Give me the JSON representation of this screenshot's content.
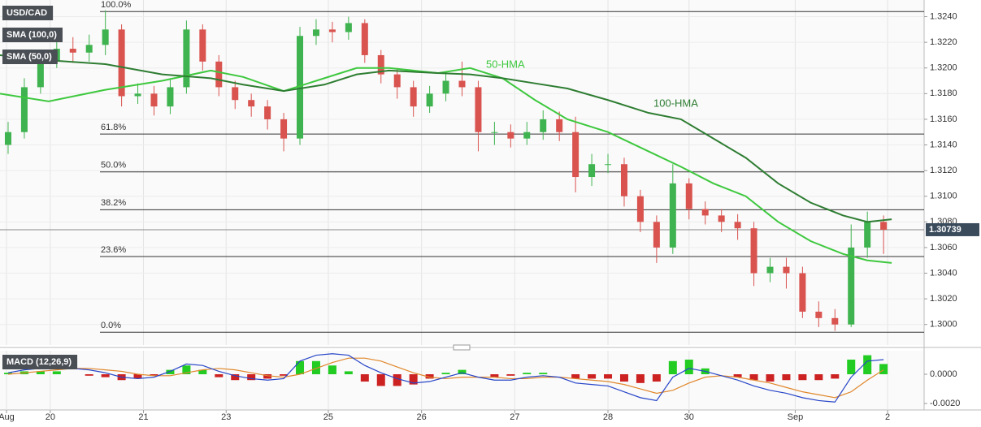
{
  "chart_data": [
    {
      "type": "candlestick",
      "legend": [
        "USD/CAD",
        "SMA (100,0)",
        "SMA (50,0)"
      ],
      "x": [
        1,
        3,
        5,
        7,
        9,
        11,
        13,
        15,
        17,
        19,
        21,
        23,
        25,
        27,
        29,
        31,
        33,
        35,
        37,
        39,
        41,
        43,
        45,
        47,
        49,
        51,
        53,
        55,
        57,
        59,
        61,
        63,
        65,
        67,
        69,
        71,
        73,
        75,
        77,
        79,
        81,
        83,
        85,
        87,
        89,
        91,
        93,
        95,
        97,
        99,
        101,
        103,
        105,
        107,
        109
      ],
      "open": [
        1.314,
        1.315,
        1.3185,
        1.3205,
        1.3215,
        1.3212,
        1.3218,
        1.323,
        1.3178,
        1.318,
        1.317,
        1.3185,
        1.323,
        1.3205,
        1.3185,
        1.3175,
        1.317,
        1.316,
        1.3145,
        1.3225,
        1.323,
        1.3228,
        1.3235,
        1.321,
        1.3195,
        1.3185,
        1.317,
        1.318,
        1.319,
        1.3185,
        1.315,
        1.315,
        1.3145,
        1.315,
        1.316,
        1.315,
        1.3115,
        1.3125,
        1.3125,
        1.31,
        1.308,
        1.306,
        1.311,
        1.309,
        1.3085,
        1.308,
        1.3075,
        1.304,
        1.3045,
        1.304,
        1.301,
        1.3005,
        1.3,
        1.306,
        1.308
      ],
      "high": [
        1.3158,
        1.3192,
        1.3212,
        1.3222,
        1.3224,
        1.3226,
        1.3245,
        1.3234,
        1.3188,
        1.3186,
        1.3192,
        1.3237,
        1.3234,
        1.321,
        1.319,
        1.318,
        1.3175,
        1.3165,
        1.3232,
        1.3238,
        1.3236,
        1.324,
        1.3238,
        1.3214,
        1.32,
        1.319,
        1.3186,
        1.3196,
        1.3205,
        1.319,
        1.3158,
        1.3156,
        1.3158,
        1.3167,
        1.3166,
        1.3162,
        1.3133,
        1.3133,
        1.313,
        1.3105,
        1.3085,
        1.3125,
        1.3114,
        1.3096,
        1.309,
        1.3086,
        1.308,
        1.3052,
        1.3052,
        1.3045,
        1.3018,
        1.3012,
        1.3078,
        1.3088,
        1.3085
      ],
      "low": [
        1.3133,
        1.3145,
        1.318,
        1.32,
        1.3204,
        1.3205,
        1.321,
        1.317,
        1.3172,
        1.3163,
        1.3164,
        1.318,
        1.3198,
        1.3178,
        1.3168,
        1.3162,
        1.3152,
        1.3135,
        1.314,
        1.3218,
        1.322,
        1.3222,
        1.3204,
        1.3188,
        1.3176,
        1.3162,
        1.3165,
        1.3174,
        1.3178,
        1.3135,
        1.314,
        1.3138,
        1.314,
        1.3144,
        1.3143,
        1.3103,
        1.3108,
        1.3118,
        1.3092,
        1.3072,
        1.3048,
        1.3055,
        1.3082,
        1.3078,
        1.3072,
        1.3066,
        1.303,
        1.3033,
        1.3028,
        1.3005,
        1.2998,
        1.2995,
        1.2998,
        1.3052,
        1.3055
      ],
      "close": [
        1.315,
        1.3185,
        1.3205,
        1.3215,
        1.3212,
        1.3218,
        1.323,
        1.3178,
        1.318,
        1.317,
        1.3185,
        1.323,
        1.3205,
        1.3185,
        1.3175,
        1.317,
        1.316,
        1.3145,
        1.3225,
        1.323,
        1.3228,
        1.3235,
        1.321,
        1.3195,
        1.3185,
        1.317,
        1.318,
        1.319,
        1.3185,
        1.315,
        1.315,
        1.3145,
        1.315,
        1.316,
        1.315,
        1.3115,
        1.3125,
        1.3125,
        1.31,
        1.308,
        1.306,
        1.311,
        1.309,
        1.3085,
        1.308,
        1.3075,
        1.304,
        1.3045,
        1.304,
        1.301,
        1.3005,
        1.3,
        1.306,
        1.308,
        1.30739
      ],
      "up_color": "#3fb34f",
      "down_color": "#d9534f",
      "lines": [
        {
          "name": "50-HMA",
          "color": "#3ec83e",
          "x": [
            0,
            6,
            13,
            20,
            26,
            30,
            35,
            40,
            44,
            48,
            54,
            58,
            62,
            66,
            70,
            75,
            80,
            84,
            88,
            92,
            96,
            100,
            104,
            107,
            110
          ],
          "values": [
            1.318,
            1.3174,
            1.3183,
            1.319,
            1.3198,
            1.3193,
            1.3182,
            1.3192,
            1.32,
            1.32,
            1.3196,
            1.32,
            1.3192,
            1.3175,
            1.316,
            1.315,
            1.3135,
            1.3123,
            1.311,
            1.31,
            1.308,
            1.3065,
            1.3055,
            1.305,
            1.3048
          ]
        },
        {
          "name": "100-HMA",
          "color": "#2e7d32",
          "x": [
            0,
            6,
            13,
            20,
            26,
            30,
            35,
            40,
            44,
            48,
            54,
            58,
            62,
            66,
            70,
            75,
            80,
            84,
            88,
            92,
            96,
            100,
            104,
            107,
            110
          ],
          "values": [
            1.321,
            1.3206,
            1.3203,
            1.3195,
            1.3192,
            1.3187,
            1.3182,
            1.3187,
            1.3195,
            1.3198,
            1.3196,
            1.3195,
            1.3192,
            1.3188,
            1.3184,
            1.3175,
            1.3165,
            1.316,
            1.3145,
            1.313,
            1.311,
            1.3095,
            1.3085,
            1.308,
            1.3082
          ]
        }
      ],
      "levels": [
        {
          "label": "100.0%",
          "value": 1.3244
        },
        {
          "label": "61.8%",
          "value": 1.31485
        },
        {
          "label": "50.0%",
          "value": 1.3119
        },
        {
          "label": "38.2%",
          "value": 1.30895
        },
        {
          "label": "23.6%",
          "value": 1.3053
        },
        {
          "label": "0.0%",
          "value": 1.2994
        }
      ],
      "last_price": 1.30739,
      "xlim": [
        0,
        114
      ],
      "ylim": [
        1.2984,
        1.3253
      ],
      "yticks": [
        {
          "value": 1.3,
          "label": "1.3000"
        },
        {
          "value": 1.302,
          "label": "1.3020"
        },
        {
          "value": 1.304,
          "label": "1.3040"
        },
        {
          "value": 1.306,
          "label": "1.3060"
        },
        {
          "value": 1.308,
          "label": "1.3080"
        },
        {
          "value": 1.31,
          "label": "1.3100"
        },
        {
          "value": 1.312,
          "label": "1.3120"
        },
        {
          "value": 1.314,
          "label": "1.3140"
        },
        {
          "value": 1.316,
          "label": "1.3160"
        },
        {
          "value": 1.318,
          "label": "1.3180"
        },
        {
          "value": 1.32,
          "label": "1.3200"
        },
        {
          "value": 1.322,
          "label": "1.3220"
        },
        {
          "value": 1.324,
          "label": "1.3240"
        }
      ],
      "grid": true
    },
    {
      "type": "macd",
      "label": "MACD (12,26,9)",
      "x": [
        1,
        3,
        5,
        7,
        9,
        11,
        13,
        15,
        17,
        19,
        21,
        23,
        25,
        27,
        29,
        31,
        33,
        35,
        37,
        39,
        41,
        43,
        45,
        47,
        49,
        51,
        53,
        55,
        57,
        59,
        61,
        63,
        65,
        67,
        69,
        71,
        73,
        75,
        77,
        79,
        81,
        83,
        85,
        87,
        89,
        91,
        93,
        95,
        97,
        99,
        101,
        103,
        105,
        107,
        109
      ],
      "macd": {
        "color": "#2846c8",
        "values": [
          0.0001,
          0.0003,
          0.0004,
          0.0005,
          0.0004,
          0.0003,
          0.0001,
          -0.0002,
          -0.0003,
          -0.0002,
          0.0002,
          0.0007,
          0.0006,
          0.0002,
          -0.0001,
          -0.0003,
          -0.0004,
          -0.0003,
          0.0009,
          0.0013,
          0.0014,
          0.0013,
          0.0006,
          0.0001,
          -0.0003,
          -0.0006,
          -0.0005,
          -0.0002,
          0.0001,
          -0.0002,
          -0.0004,
          -0.0004,
          -0.0002,
          -0.0001,
          -0.0002,
          -0.0006,
          -0.0007,
          -0.0008,
          -0.0012,
          -0.0016,
          -0.0018,
          -0.0002,
          0.0004,
          0.0002,
          -0.0001,
          -0.0004,
          -0.0008,
          -0.0011,
          -0.0013,
          -0.0016,
          -0.0018,
          -0.0019,
          -0.0002,
          0.0009,
          0.001
        ]
      },
      "signal": {
        "color": "#e0872b",
        "values": [
          0.0,
          0.0001,
          0.0002,
          0.0003,
          0.0004,
          0.0004,
          0.0003,
          0.0002,
          0.0,
          -0.0001,
          -0.0001,
          0.0001,
          0.0003,
          0.0004,
          0.0003,
          0.0001,
          -0.0001,
          -0.0002,
          0.0,
          0.0004,
          0.0008,
          0.0011,
          0.0011,
          0.0009,
          0.0005,
          0.0001,
          -0.0002,
          -0.0003,
          -0.0002,
          -0.0002,
          -0.0002,
          -0.0003,
          -0.0003,
          -0.0002,
          -0.0002,
          -0.0003,
          -0.0004,
          -0.0005,
          -0.0007,
          -0.001,
          -0.0013,
          -0.0011,
          -0.0006,
          -0.0002,
          -0.0001,
          -0.0002,
          -0.0004,
          -0.0006,
          -0.0009,
          -0.0012,
          -0.0014,
          -0.0016,
          -0.0012,
          -0.0004,
          0.0003
        ]
      },
      "histogram": {
        "up_color": "#22cc22",
        "down_color": "#cc2222",
        "values": [
          0.0001,
          0.0002,
          0.0002,
          0.0002,
          0.0,
          -0.0001,
          -0.0002,
          -0.0004,
          -0.0003,
          -0.0001,
          0.0003,
          0.0006,
          0.0003,
          -0.0002,
          -0.0004,
          -0.0004,
          -0.0003,
          -0.0001,
          0.0009,
          0.0009,
          0.0006,
          0.0002,
          -0.0005,
          -0.0008,
          -0.0008,
          -0.0007,
          -0.0003,
          0.0001,
          0.0003,
          0.0,
          -0.0002,
          -0.0001,
          0.0001,
          0.0001,
          0.0,
          -0.0003,
          -0.0003,
          -0.0003,
          -0.0005,
          -0.0006,
          -0.0005,
          0.0009,
          0.001,
          0.0004,
          0.0,
          -0.0002,
          -0.0004,
          -0.0005,
          -0.0004,
          -0.0004,
          -0.0004,
          -0.0003,
          0.001,
          0.0013,
          0.0007
        ]
      },
      "xlim": [
        0,
        114
      ],
      "xticks": [
        {
          "value": 0.8,
          "label": "Aug"
        },
        {
          "value": 6.2,
          "label": "20"
        },
        {
          "value": 17.7,
          "label": "21"
        },
        {
          "value": 27.9,
          "label": "23"
        },
        {
          "value": 40.5,
          "label": "25"
        },
        {
          "value": 52,
          "label": "26"
        },
        {
          "value": 63.5,
          "label": "27"
        },
        {
          "value": 75,
          "label": "28"
        },
        {
          "value": 85,
          "label": "30"
        },
        {
          "value": 98.1,
          "label": "Sep"
        },
        {
          "value": 109.5,
          "label": "2"
        }
      ],
      "ylim": [
        -0.00244,
        0.00161
      ],
      "yticks": [
        {
          "value": 0,
          "label": "0.0000"
        },
        {
          "value": -0.002,
          "label": "-0.0020"
        }
      ]
    }
  ]
}
